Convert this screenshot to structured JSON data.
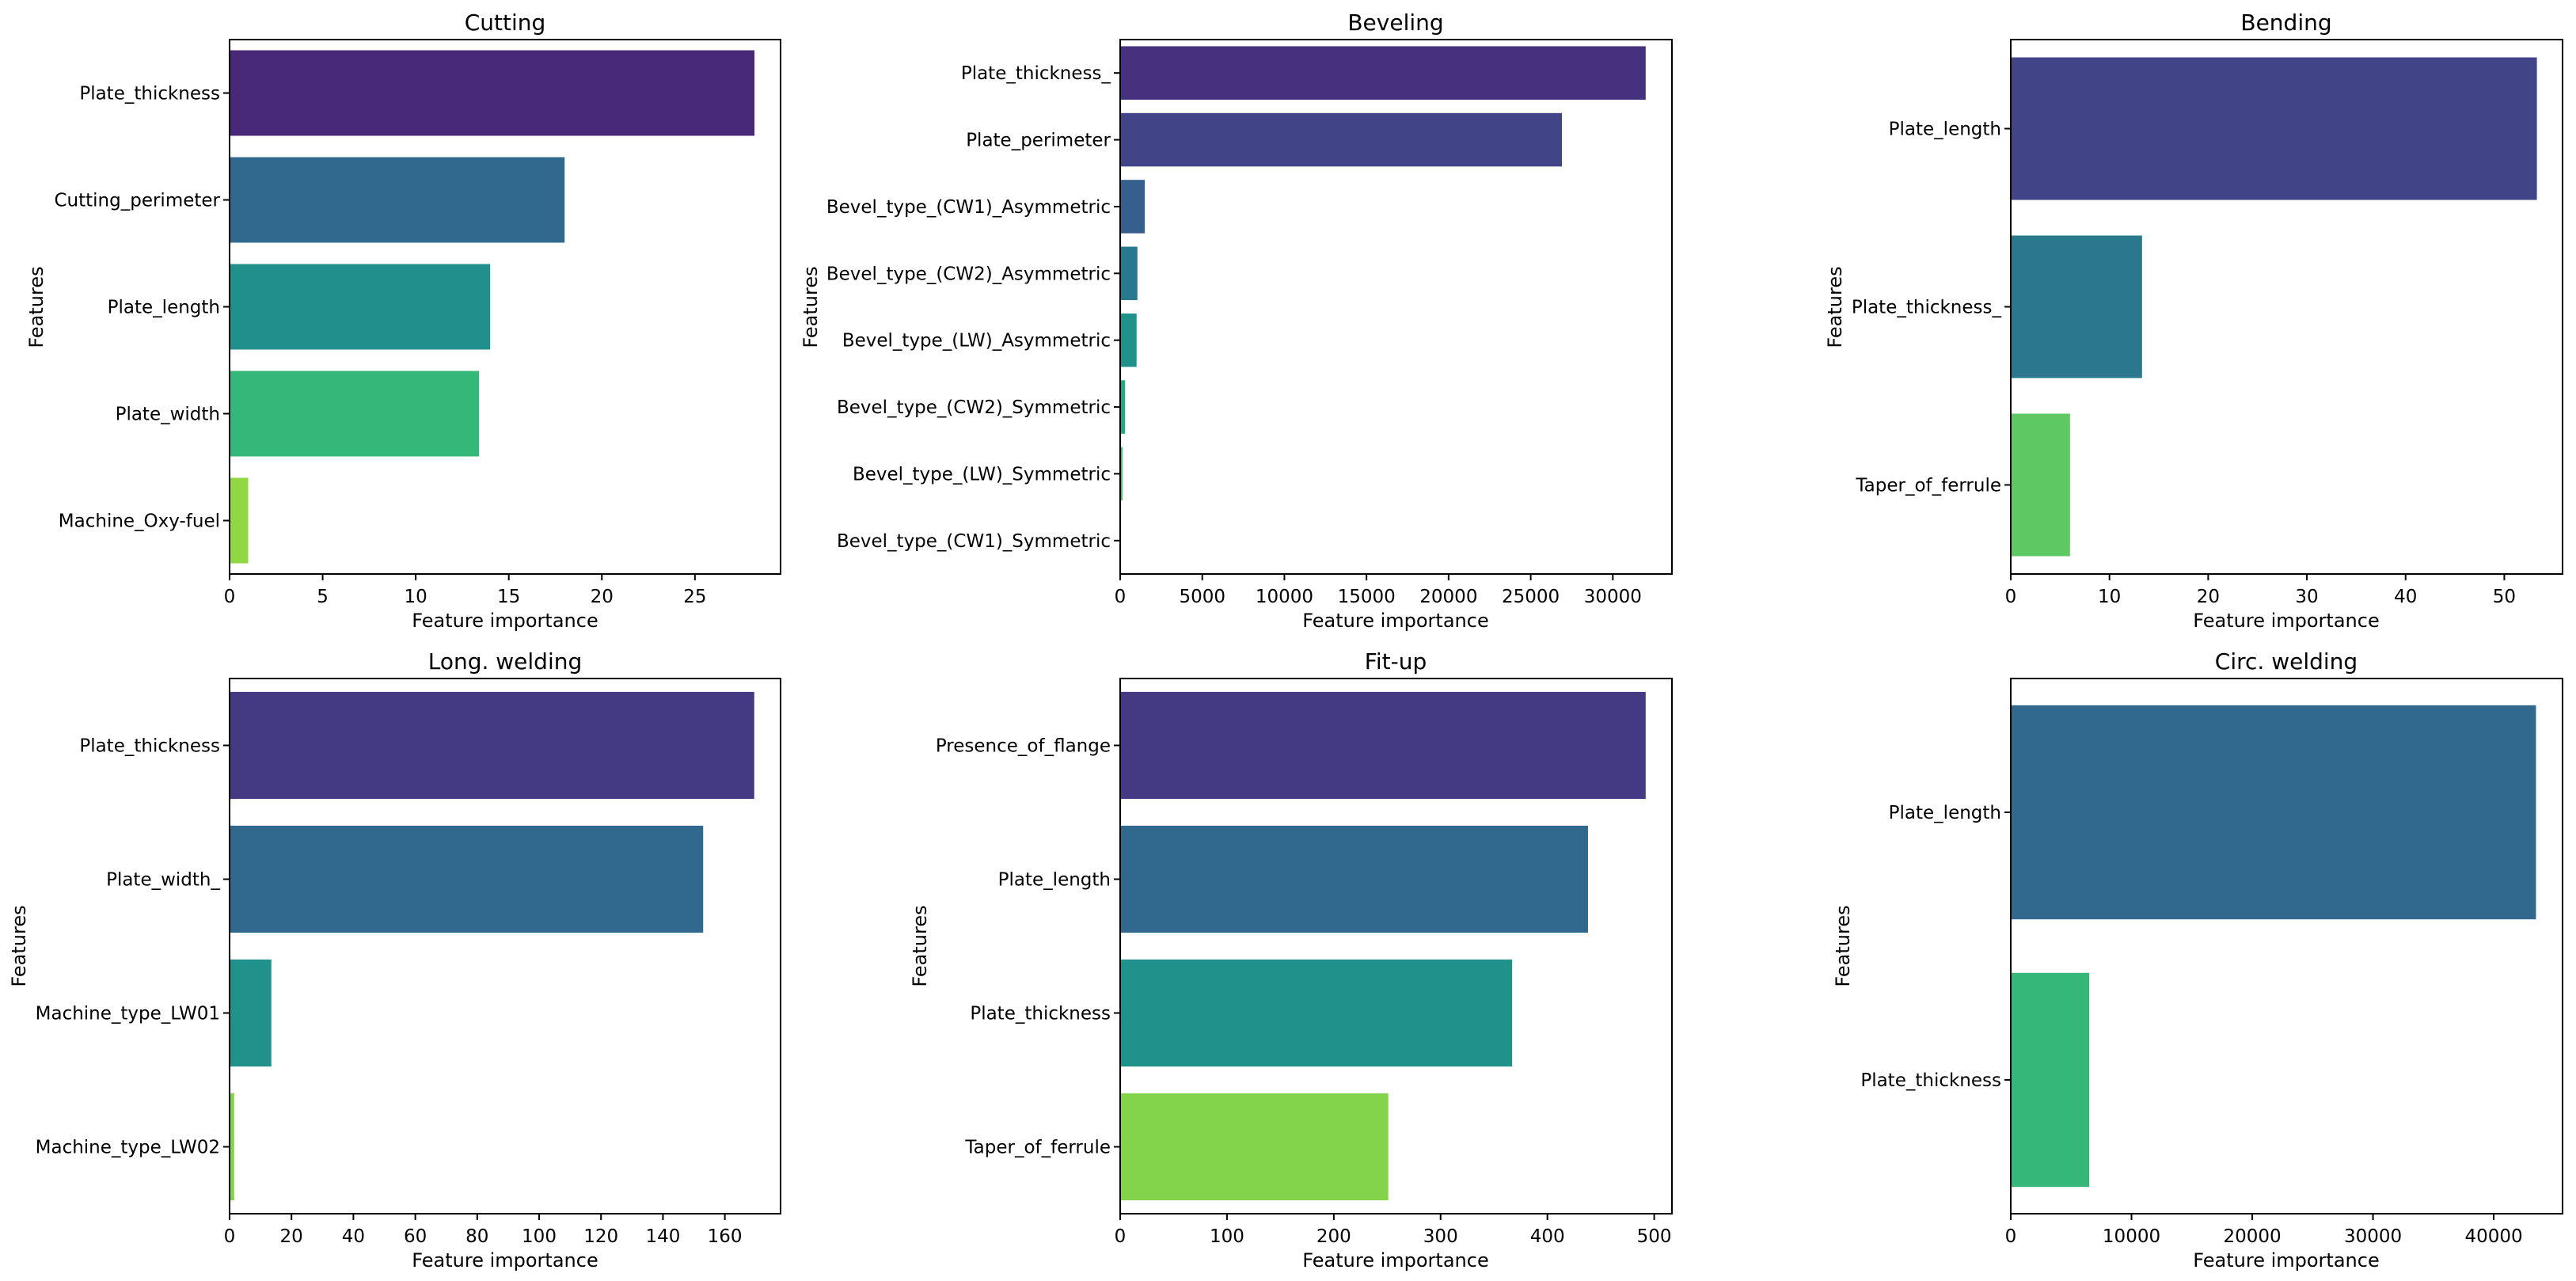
{
  "chart_data": [
    {
      "type": "bar",
      "orientation": "horizontal",
      "title": "Cutting",
      "xlabel": "Feature importance",
      "ylabel": "Features",
      "categories": [
        "Plate_thickness",
        "Cutting_perimeter",
        "Plate_length",
        "Plate_width",
        "Machine_Oxy-fuel"
      ],
      "values": [
        28.2,
        18.0,
        14.0,
        13.4,
        1.0
      ],
      "colors": [
        "#482878",
        "#31688e",
        "#21908d",
        "#35b779",
        "#90d743"
      ],
      "xlim": [
        0,
        29.6
      ],
      "xticks": [
        0,
        5,
        10,
        15,
        20,
        25
      ],
      "grid": false
    },
    {
      "type": "bar",
      "orientation": "horizontal",
      "title": "Beveling",
      "xlabel": "Feature importance",
      "ylabel": "Features",
      "categories": [
        "Plate_thickness_",
        "Plate_perimeter",
        "Bevel_type_(CW1)_Asymmetric",
        "Bevel_type_(CW2)_Asymmetric",
        "Bevel_type_(LW)_Asymmetric",
        "Bevel_type_(CW2)_Symmetric",
        "Bevel_type_(LW)_Symmetric",
        "Bevel_type_(CW1)_Symmetric"
      ],
      "values": [
        32000,
        26900,
        1500,
        1050,
        1000,
        300,
        150,
        50
      ],
      "colors": [
        "#46317e",
        "#414487",
        "#355f8d",
        "#2a788e",
        "#21918c",
        "#22a884",
        "#44bf70",
        "#7ad151"
      ],
      "xlim": [
        0,
        33600
      ],
      "xticks": [
        0,
        5000,
        10000,
        15000,
        20000,
        25000,
        30000
      ],
      "grid": false
    },
    {
      "type": "bar",
      "orientation": "horizontal",
      "title": "Bending",
      "xlabel": "Feature importance",
      "ylabel": "Features",
      "categories": [
        "Plate_length",
        "Plate_thickness_",
        "Taper_of_ferrule"
      ],
      "values": [
        53.3,
        13.3,
        6.0
      ],
      "colors": [
        "#414487",
        "#2a788e",
        "#5ec962"
      ],
      "xlim": [
        0,
        55.9
      ],
      "xticks": [
        0,
        10,
        20,
        30,
        40,
        50
      ],
      "grid": false
    },
    {
      "type": "bar",
      "orientation": "horizontal",
      "title": "Long. welding",
      "xlabel": "Feature importance",
      "ylabel": "Features",
      "categories": [
        "Plate_thickness",
        "Plate_width_",
        "Machine_type_LW01",
        "Machine_type_LW02"
      ],
      "values": [
        169.5,
        153.0,
        13.5,
        1.5
      ],
      "colors": [
        "#443983",
        "#31688e",
        "#21918c",
        "#84d44b"
      ],
      "xlim": [
        0,
        178
      ],
      "xticks": [
        0,
        20,
        40,
        60,
        80,
        100,
        120,
        140,
        160
      ],
      "grid": false
    },
    {
      "type": "bar",
      "orientation": "horizontal",
      "title": "Fit-up",
      "xlabel": "Feature importance",
      "ylabel": "Features",
      "categories": [
        "Presence_of_flange",
        "Plate_length",
        "Plate_thickness",
        "Taper_of_ferrule"
      ],
      "values": [
        492,
        438,
        367,
        251
      ],
      "colors": [
        "#443983",
        "#31688e",
        "#21918c",
        "#84d44b"
      ],
      "xlim": [
        0,
        516.6
      ],
      "xticks": [
        0,
        100,
        200,
        300,
        400,
        500
      ],
      "grid": false
    },
    {
      "type": "bar",
      "orientation": "horizontal",
      "title": "Circ. welding",
      "xlabel": "Feature importance",
      "ylabel": "Features",
      "categories": [
        "Plate_length",
        "Plate_thickness"
      ],
      "values": [
        43500,
        6500
      ],
      "colors": [
        "#31688e",
        "#35b779"
      ],
      "xlim": [
        0,
        45700
      ],
      "xticks": [
        0,
        10000,
        20000,
        30000,
        40000
      ],
      "grid": false
    }
  ]
}
